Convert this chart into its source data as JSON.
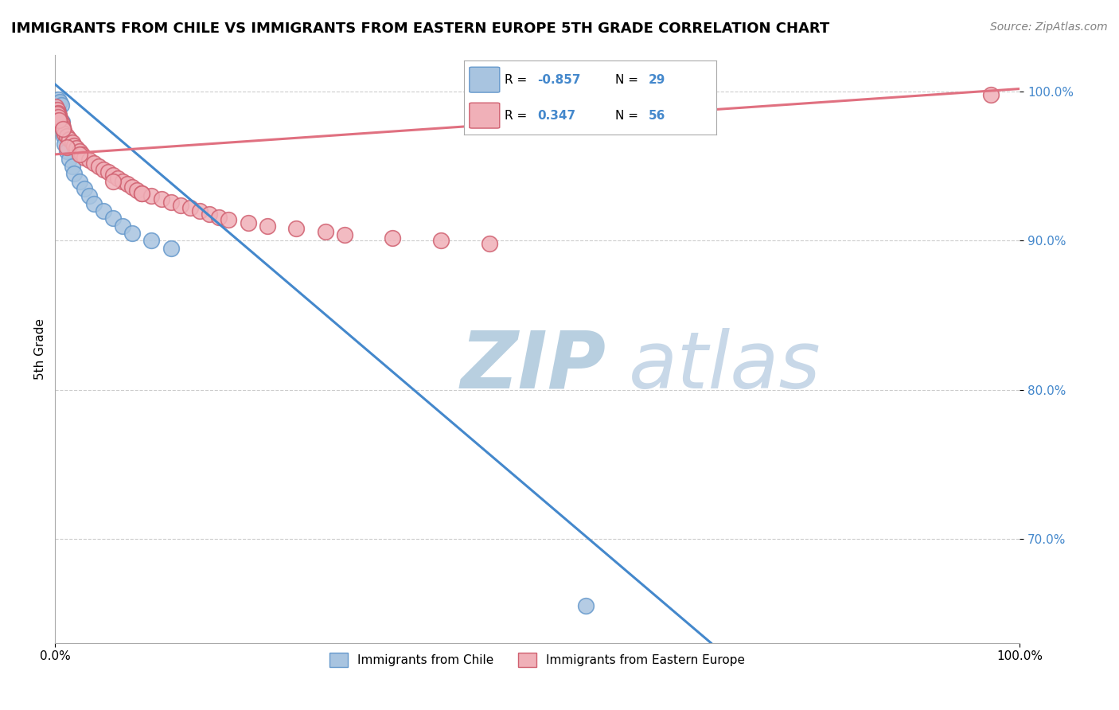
{
  "title": "IMMIGRANTS FROM CHILE VS IMMIGRANTS FROM EASTERN EUROPE 5TH GRADE CORRELATION CHART",
  "source": "Source: ZipAtlas.com",
  "ylabel": "5th Grade",
  "ytick_values": [
    0.7,
    0.8,
    0.9,
    1.0
  ],
  "legend_blue_r": "-0.857",
  "legend_blue_n": "29",
  "legend_pink_r": "0.347",
  "legend_pink_n": "56",
  "series_blue": {
    "label": "Immigrants from Chile",
    "color": "#a8c4e0",
    "edge_color": "#6699cc",
    "x": [
      0.001,
      0.002,
      0.003,
      0.004,
      0.002,
      0.005,
      0.006,
      0.003,
      0.004,
      0.007,
      0.008,
      0.009,
      0.01,
      0.012,
      0.015,
      0.018,
      0.02,
      0.025,
      0.03,
      0.035,
      0.04,
      0.05,
      0.06,
      0.07,
      0.08,
      0.1,
      0.12,
      0.55,
      0.003
    ],
    "y": [
      0.99,
      0.985,
      0.995,
      0.992,
      0.988,
      0.993,
      0.991,
      0.987,
      0.984,
      0.98,
      0.975,
      0.97,
      0.965,
      0.96,
      0.955,
      0.95,
      0.945,
      0.94,
      0.935,
      0.93,
      0.925,
      0.92,
      0.915,
      0.91,
      0.905,
      0.9,
      0.895,
      0.655,
      0.982
    ]
  },
  "series_pink": {
    "label": "Immigrants from Eastern Europe",
    "color": "#f0b0b8",
    "edge_color": "#d06070",
    "x": [
      0.001,
      0.002,
      0.003,
      0.004,
      0.005,
      0.006,
      0.007,
      0.008,
      0.009,
      0.01,
      0.012,
      0.015,
      0.018,
      0.02,
      0.022,
      0.025,
      0.028,
      0.03,
      0.035,
      0.04,
      0.045,
      0.05,
      0.055,
      0.06,
      0.065,
      0.07,
      0.075,
      0.08,
      0.085,
      0.09,
      0.1,
      0.11,
      0.12,
      0.13,
      0.14,
      0.15,
      0.16,
      0.17,
      0.18,
      0.2,
      0.22,
      0.25,
      0.28,
      0.3,
      0.35,
      0.4,
      0.45,
      0.002,
      0.003,
      0.004,
      0.008,
      0.012,
      0.025,
      0.06,
      0.09,
      0.97
    ],
    "y": [
      0.99,
      0.988,
      0.986,
      0.984,
      0.982,
      0.98,
      0.978,
      0.976,
      0.974,
      0.972,
      0.97,
      0.968,
      0.966,
      0.964,
      0.962,
      0.96,
      0.958,
      0.956,
      0.954,
      0.952,
      0.95,
      0.948,
      0.946,
      0.944,
      0.942,
      0.94,
      0.938,
      0.936,
      0.934,
      0.932,
      0.93,
      0.928,
      0.926,
      0.924,
      0.922,
      0.92,
      0.918,
      0.916,
      0.914,
      0.912,
      0.91,
      0.908,
      0.906,
      0.904,
      0.902,
      0.9,
      0.898,
      0.985,
      0.983,
      0.981,
      0.975,
      0.963,
      0.958,
      0.94,
      0.932,
      0.998
    ]
  },
  "xlim": [
    0.0,
    1.0
  ],
  "ylim": [
    0.63,
    1.025
  ],
  "background_color": "#ffffff",
  "grid_color": "#cccccc",
  "watermark_zip": "ZIP",
  "watermark_atlas": "atlas",
  "watermark_color_zip": "#b8cfe0",
  "watermark_color_atlas": "#c8d8e8",
  "blue_line_x": [
    0.0,
    0.68
  ],
  "blue_line_y": [
    1.005,
    0.63
  ],
  "pink_line_x": [
    0.0,
    1.0
  ],
  "pink_line_y": [
    0.958,
    1.002
  ],
  "blue_line_color": "#4488cc",
  "pink_line_color": "#e07080",
  "tick_color_right": "#4488cc"
}
